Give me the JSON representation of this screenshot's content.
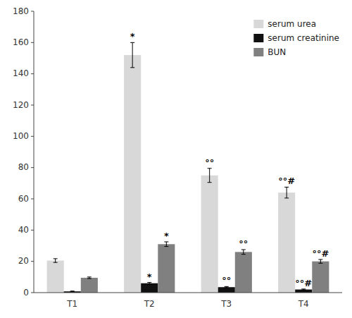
{
  "chart_data": {
    "type": "bar",
    "categories": [
      "T1",
      "T2",
      "T3",
      "T4"
    ],
    "series": [
      {
        "name": "serum urea",
        "color": "#d8d8d8",
        "values": [
          20.5,
          152.0,
          75.0,
          64.0
        ],
        "errors": [
          1.2,
          8.0,
          4.5,
          3.5
        ],
        "annotations": [
          null,
          "*",
          "°°",
          "°°#"
        ]
      },
      {
        "name": "serum creatinine",
        "color": "#111111",
        "values": [
          0.8,
          6.0,
          3.5,
          2.0
        ],
        "errors": [
          0.2,
          0.5,
          0.4,
          0.3
        ],
        "annotations": [
          null,
          "*",
          "°°",
          "°°#"
        ]
      },
      {
        "name": "BUN",
        "color": "#808080",
        "values": [
          9.5,
          31.0,
          26.0,
          20.0
        ],
        "errors": [
          0.5,
          1.5,
          1.5,
          1.2
        ],
        "annotations": [
          null,
          "*",
          "°°",
          "°°#"
        ]
      }
    ],
    "ylim": [
      0,
      180
    ],
    "yticks": [
      0,
      20,
      40,
      60,
      80,
      100,
      120,
      140,
      160,
      180
    ],
    "grid": false,
    "legend": "upper-right"
  }
}
